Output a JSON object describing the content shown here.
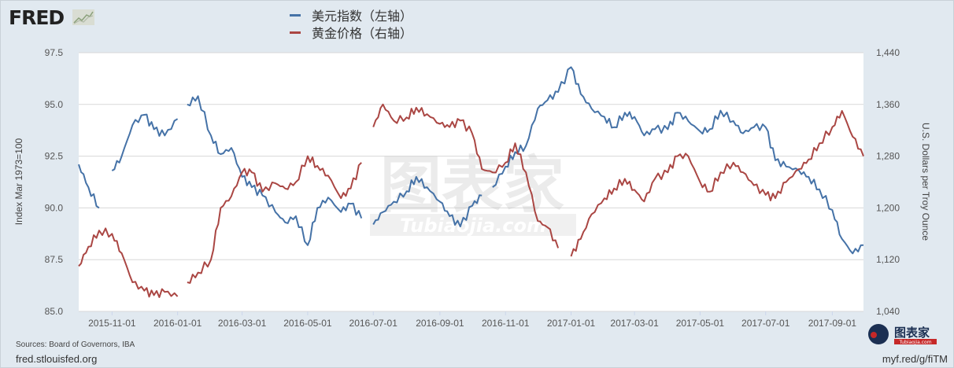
{
  "header": {
    "logo_text": "FRED",
    "logo_icon": "line-chart-icon"
  },
  "legend": [
    {
      "label": "美元指数（左轴）",
      "color": "#4572a7"
    },
    {
      "label": "黄金价格（右轴）",
      "color": "#aa4643"
    }
  ],
  "footer": {
    "source": "Sources: Board of Governors, IBA",
    "site": "fred.stlouisfed.org",
    "short_url": "myf.red/g/fiTM"
  },
  "watermark": {
    "text_cn": "图表家",
    "text_en": "Tubiaojia.com"
  },
  "badge": {
    "text": "图表家",
    "sub": "Tubiaojia.com"
  },
  "chart_data": {
    "type": "line",
    "title": "",
    "xlabel": "",
    "ylabel": "Index Mar 1973=100",
    "ylabel_right": "U.S. Dollars per Troy Ounce",
    "x_ticks": [
      "2015-11-01",
      "2016-01-01",
      "2016-03-01",
      "2016-05-01",
      "2016-07-01",
      "2016-09-01",
      "2016-11-01",
      "2017-01-01",
      "2017-03-01",
      "2017-05-01",
      "2017-07-01",
      "2017-09-01"
    ],
    "y_ticks_left": [
      "85.0",
      "87.5",
      "90.0",
      "92.5",
      "95.0",
      "97.5"
    ],
    "y_ticks_right": [
      "1,040",
      "1,120",
      "1,200",
      "1,280",
      "1,360",
      "1,440"
    ],
    "ylim": [
      85.0,
      97.5
    ],
    "ylim_right": [
      1040,
      1440
    ],
    "grid": true,
    "legend_position": "top",
    "x_range": [
      "2015-10-01",
      "2017-09-30"
    ],
    "series": [
      {
        "name": "美元指数（左轴）",
        "axis": "left",
        "color": "#4572a7",
        "x": [
          "2015-10-01",
          "2015-10-10",
          "2015-10-20",
          "2015-11-01",
          "2015-11-10",
          "2015-11-20",
          "2015-12-01",
          "2015-12-10",
          "2015-12-20",
          "2016-01-01",
          "2016-01-10",
          "2016-01-20",
          "2016-02-01",
          "2016-02-10",
          "2016-02-20",
          "2016-03-01",
          "2016-03-10",
          "2016-03-20",
          "2016-04-01",
          "2016-04-10",
          "2016-04-20",
          "2016-05-01",
          "2016-05-10",
          "2016-05-20",
          "2016-06-01",
          "2016-06-10",
          "2016-06-20",
          "2016-07-01",
          "2016-07-10",
          "2016-07-20",
          "2016-08-01",
          "2016-08-10",
          "2016-08-20",
          "2016-09-01",
          "2016-09-10",
          "2016-09-20",
          "2016-10-01",
          "2016-10-10",
          "2016-10-20",
          "2016-11-01",
          "2016-11-10",
          "2016-11-20",
          "2016-12-01",
          "2016-12-10",
          "2016-12-20",
          "2017-01-01",
          "2017-01-10",
          "2017-01-20",
          "2017-02-01",
          "2017-02-10",
          "2017-02-20",
          "2017-03-01",
          "2017-03-10",
          "2017-03-20",
          "2017-04-01",
          "2017-04-10",
          "2017-04-20",
          "2017-05-01",
          "2017-05-10",
          "2017-05-20",
          "2017-06-01",
          "2017-06-10",
          "2017-06-20",
          "2017-07-01",
          "2017-07-10",
          "2017-07-20",
          "2017-08-01",
          "2017-08-10",
          "2017-08-20",
          "2017-09-01",
          "2017-09-10",
          "2017-09-20",
          "2017-09-30"
        ],
        "values": [
          92.1,
          91.0,
          90.0,
          91.8,
          92.5,
          94.0,
          94.5,
          93.8,
          93.5,
          94.3,
          95.0,
          95.4,
          93.5,
          92.6,
          92.9,
          91.5,
          91.0,
          90.6,
          89.8,
          89.3,
          89.6,
          88.2,
          90.0,
          90.5,
          89.8,
          90.2,
          89.5,
          89.2,
          89.8,
          90.3,
          90.8,
          91.5,
          91.0,
          90.3,
          89.6,
          89.1,
          90.1,
          90.6,
          91.0,
          92.0,
          92.7,
          93.0,
          94.8,
          95.2,
          95.6,
          96.8,
          95.5,
          94.8,
          94.4,
          93.9,
          94.6,
          94.4,
          93.5,
          93.8,
          93.8,
          94.6,
          94.2,
          93.7,
          93.8,
          94.7,
          94.2,
          93.6,
          93.9,
          93.9,
          92.3,
          92.0,
          91.8,
          91.5,
          90.9,
          89.9,
          88.5,
          87.8,
          88.2
        ],
        "breaks": [
          "2015-10-20",
          "2016-01-01",
          "2016-06-20",
          "2016-10-10"
        ]
      },
      {
        "name": "黄金价格（右轴）",
        "axis": "right",
        "color": "#aa4643",
        "x": [
          "2015-10-01",
          "2015-10-10",
          "2015-10-20",
          "2015-11-01",
          "2015-11-10",
          "2015-11-20",
          "2015-12-01",
          "2015-12-10",
          "2015-12-20",
          "2016-01-01",
          "2016-01-10",
          "2016-01-20",
          "2016-02-01",
          "2016-02-10",
          "2016-02-20",
          "2016-03-01",
          "2016-03-10",
          "2016-03-20",
          "2016-04-01",
          "2016-04-10",
          "2016-04-20",
          "2016-05-01",
          "2016-05-10",
          "2016-05-20",
          "2016-06-01",
          "2016-06-10",
          "2016-06-20",
          "2016-07-01",
          "2016-07-10",
          "2016-07-20",
          "2016-08-01",
          "2016-08-10",
          "2016-08-20",
          "2016-09-01",
          "2016-09-10",
          "2016-09-20",
          "2016-10-01",
          "2016-10-10",
          "2016-10-20",
          "2016-11-01",
          "2016-11-10",
          "2016-11-20",
          "2016-12-01",
          "2016-12-10",
          "2016-12-20",
          "2017-01-01",
          "2017-01-10",
          "2017-01-20",
          "2017-02-01",
          "2017-02-10",
          "2017-02-20",
          "2017-03-01",
          "2017-03-10",
          "2017-03-20",
          "2017-04-01",
          "2017-04-10",
          "2017-04-20",
          "2017-05-01",
          "2017-05-10",
          "2017-05-20",
          "2017-06-01",
          "2017-06-10",
          "2017-06-20",
          "2017-07-01",
          "2017-07-10",
          "2017-07-20",
          "2017-08-01",
          "2017-08-10",
          "2017-08-20",
          "2017-09-01",
          "2017-09-10",
          "2017-09-20",
          "2017-09-30"
        ],
        "values": [
          1110,
          1140,
          1165,
          1160,
          1130,
          1085,
          1072,
          1065,
          1070,
          1063,
          1085,
          1100,
          1120,
          1200,
          1218,
          1255,
          1255,
          1225,
          1238,
          1230,
          1240,
          1280,
          1265,
          1250,
          1215,
          1230,
          1270,
          1325,
          1360,
          1335,
          1340,
          1355,
          1345,
          1330,
          1325,
          1335,
          1315,
          1260,
          1255,
          1270,
          1300,
          1255,
          1180,
          1170,
          1138,
          1125,
          1152,
          1190,
          1215,
          1230,
          1245,
          1228,
          1210,
          1245,
          1255,
          1280,
          1280,
          1240,
          1225,
          1255,
          1270,
          1255,
          1235,
          1220,
          1215,
          1240,
          1260,
          1275,
          1300,
          1325,
          1350,
          1310,
          1280
        ],
        "breaks": [
          "2016-01-01",
          "2016-06-20",
          "2016-12-20"
        ]
      }
    ]
  }
}
